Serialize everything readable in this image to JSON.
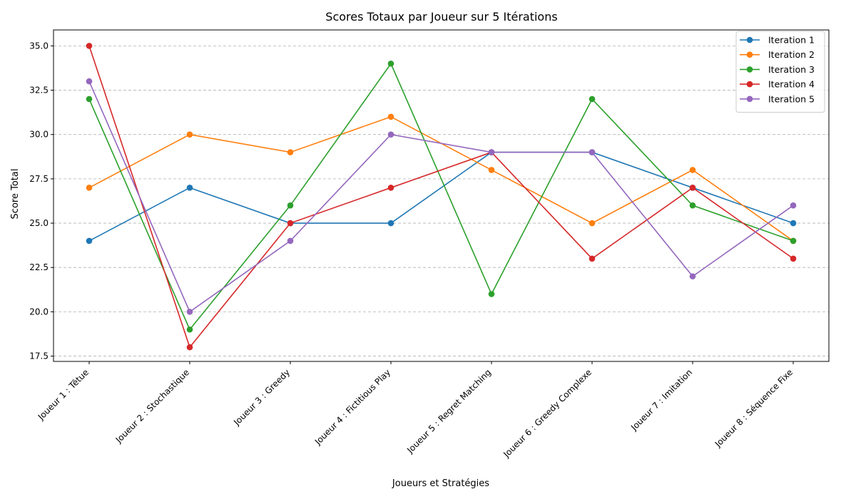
{
  "chart_data": {
    "type": "line",
    "title": "Scores Totaux par Joueur sur 5 Itérations",
    "xlabel": "Joueurs et Stratégies",
    "ylabel": "Score Total",
    "categories": [
      "Joueur 1 : Têtue",
      "Joueur 2 : Stochastique",
      "Joueur 3 : Greedy",
      "Joueur 4 : Fictitious Play",
      "Joueur 5 : Regret Matching",
      "Joueur 6 : Greedy Complexe",
      "Joueur 7 : Imitation",
      "Joueur 8 : Séquence Fixe"
    ],
    "ylim": [
      17.2,
      35.9
    ],
    "yticks": [
      "17.5",
      "20.0",
      "22.5",
      "25.0",
      "27.5",
      "30.0",
      "32.5",
      "35.0"
    ],
    "grid": "horizontal dashed",
    "legend_position": "top-right",
    "series": [
      {
        "name": "Iteration 1",
        "color": "#1f77b4",
        "values": [
          24,
          27,
          25,
          25,
          29,
          29,
          27,
          25
        ]
      },
      {
        "name": "Iteration 2",
        "color": "#ff7f0e",
        "values": [
          27,
          30,
          29,
          31,
          28,
          25,
          28,
          24
        ]
      },
      {
        "name": "Iteration 3",
        "color": "#2ca02c",
        "values": [
          32,
          19,
          26,
          34,
          21,
          32,
          26,
          24
        ]
      },
      {
        "name": "Iteration 4",
        "color": "#d62728",
        "values": [
          35,
          18,
          25,
          27,
          29,
          23,
          27,
          23
        ]
      },
      {
        "name": "Iteration 5",
        "color": "#9467bd",
        "values": [
          33,
          20,
          24,
          30,
          29,
          29,
          22,
          26
        ]
      }
    ]
  }
}
